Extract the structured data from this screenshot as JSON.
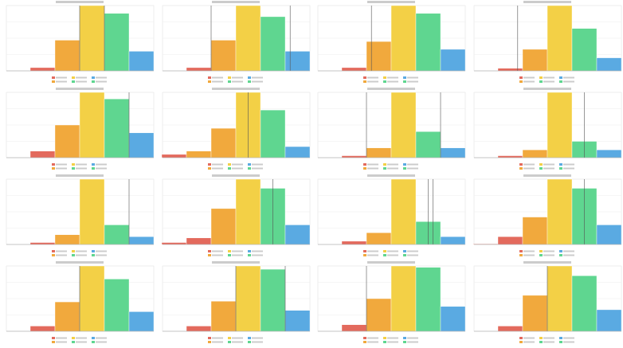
{
  "colors": {
    "red": "#e36a5d",
    "orange": "#f1a93d",
    "yellow": "#f3d046",
    "green": "#5fd690",
    "blue": "#5aaae2",
    "line": "#555555",
    "grid": "#eeeeee"
  },
  "chart_data": [
    {
      "type": "bar",
      "series_colors": [
        "red",
        "orange",
        "yellow",
        "green",
        "blue"
      ],
      "values": [
        5,
        47,
        100,
        88,
        30
      ],
      "vlines": [
        2,
        3
      ]
    },
    {
      "type": "bar",
      "series_colors": [
        "red",
        "orange",
        "yellow",
        "green",
        "blue"
      ],
      "values": [
        5,
        47,
        100,
        83,
        30
      ],
      "vlines": [
        1,
        4.2
      ]
    },
    {
      "type": "bar",
      "series_colors": [
        "red",
        "orange",
        "yellow",
        "green",
        "blue"
      ],
      "values": [
        5,
        45,
        100,
        88,
        33
      ],
      "vlines": [
        1.2
      ]
    },
    {
      "type": "bar",
      "series_colors": [
        "red",
        "orange",
        "yellow",
        "green",
        "blue"
      ],
      "values": [
        4,
        33,
        100,
        65,
        20
      ],
      "vlines": [
        0.8
      ]
    },
    {
      "type": "bar",
      "series_colors": [
        "red",
        "orange",
        "yellow",
        "green",
        "blue"
      ],
      "values": [
        10,
        50,
        100,
        90,
        38
      ],
      "vlines": [
        4
      ]
    },
    {
      "type": "bar",
      "series_colors": [
        "red",
        "orange",
        "orange",
        "yellow",
        "green",
        "blue"
      ],
      "values": [
        5,
        10,
        45,
        100,
        73,
        17
      ],
      "vlines": [
        3.5
      ]
    },
    {
      "type": "bar",
      "series_colors": [
        "red",
        "orange",
        "yellow",
        "green",
        "blue"
      ],
      "values": [
        3,
        15,
        100,
        40,
        15
      ],
      "vlines": [
        1,
        4
      ]
    },
    {
      "type": "bar",
      "series_colors": [
        "red",
        "orange",
        "yellow",
        "green",
        "blue"
      ],
      "values": [
        3,
        12,
        100,
        25,
        12
      ],
      "vlines": [
        3.5
      ]
    },
    {
      "type": "bar",
      "series_colors": [
        "red",
        "orange",
        "yellow",
        "green",
        "blue"
      ],
      "values": [
        3,
        15,
        100,
        30,
        12
      ],
      "vlines": [
        4
      ]
    },
    {
      "type": "bar",
      "series_colors": [
        "red",
        "orange",
        "yellow",
        "green",
        "blue"
      ],
      "values": [
        3,
        10,
        55,
        100,
        86,
        30
      ],
      "series_colors_override": [
        "red",
        "red",
        "orange",
        "yellow",
        "green",
        "blue"
      ],
      "vlines": [
        4.5
      ]
    },
    {
      "type": "bar",
      "series_colors": [
        "red",
        "orange",
        "yellow",
        "green",
        "blue"
      ],
      "values": [
        5,
        18,
        100,
        35,
        12
      ],
      "vlines": [
        3.5,
        3.7
      ]
    },
    {
      "type": "bar",
      "series_colors": [
        "red",
        "orange",
        "yellow",
        "green",
        "blue"
      ],
      "values": [
        1,
        12,
        42,
        100,
        86,
        30
      ],
      "series_colors_override": [
        "red",
        "red",
        "orange",
        "yellow",
        "green",
        "blue"
      ],
      "vlines": [
        4.5
      ]
    },
    {
      "type": "bar",
      "series_colors": [
        "red",
        "orange",
        "yellow",
        "green",
        "blue"
      ],
      "values": [
        8,
        45,
        100,
        80,
        30
      ],
      "vlines": [
        2
      ]
    },
    {
      "type": "bar",
      "series_colors": [
        "red",
        "orange",
        "yellow",
        "green",
        "blue"
      ],
      "values": [
        8,
        46,
        100,
        95,
        32
      ],
      "vlines": [
        2,
        4
      ]
    },
    {
      "type": "bar",
      "series_colors": [
        "red",
        "orange",
        "yellow",
        "green",
        "blue"
      ],
      "values": [
        10,
        50,
        100,
        98,
        38
      ],
      "vlines": [
        1
      ]
    },
    {
      "type": "bar",
      "series_colors": [
        "red",
        "orange",
        "yellow",
        "green",
        "blue"
      ],
      "values": [
        8,
        55,
        100,
        85,
        33
      ],
      "vlines": [
        2
      ]
    }
  ]
}
